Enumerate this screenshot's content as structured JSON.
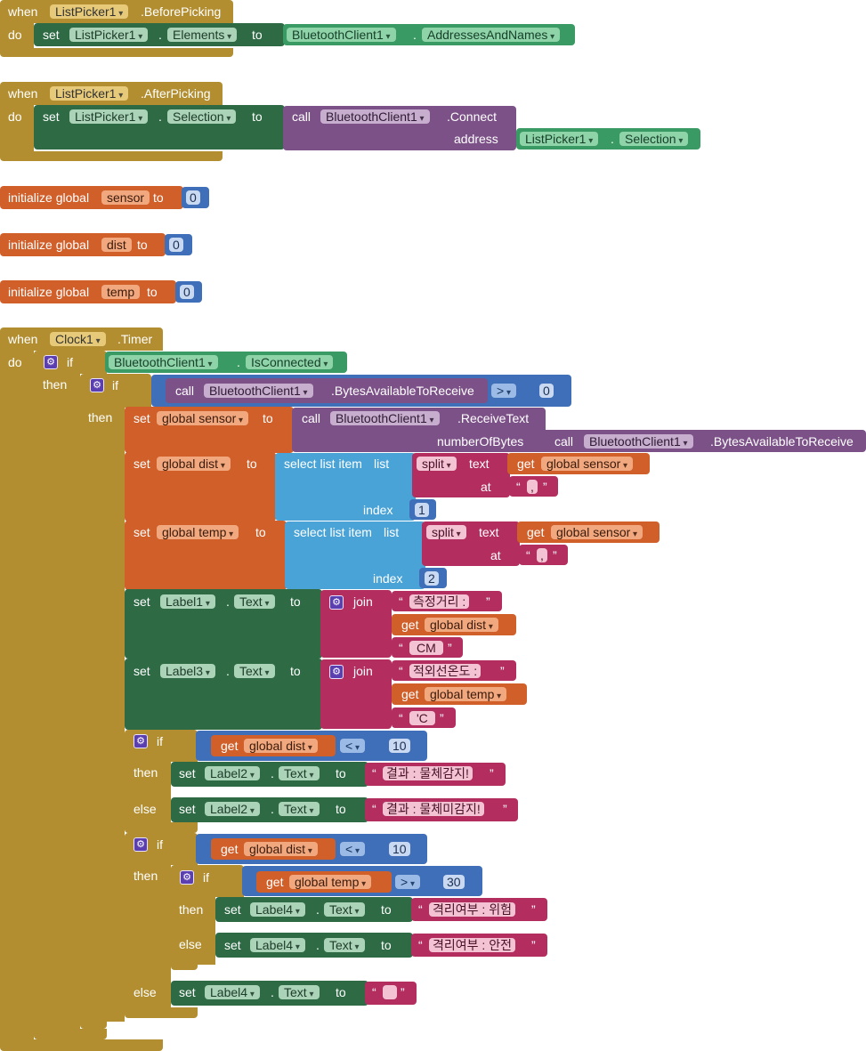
{
  "kw": {
    "when": "when",
    "do": "do",
    "set": "set",
    "to": "to",
    "call": "call",
    "init_global": "initialize global",
    "if": "if",
    "then": "then",
    "else": "else",
    "get": "get",
    "join": "join",
    "address": "address",
    "number_of_bytes": "numberOfBytes",
    "select_list_item": "select list item",
    "list": "list",
    "index": "index",
    "split": "split",
    "text": "text",
    "at": "at",
    "dot": "."
  },
  "blocks": {
    "before_picking": {
      "component": "ListPicker1",
      "event": ".BeforePicking",
      "set_component": "ListPicker1",
      "set_prop": "Elements",
      "value_component": "BluetoothClient1",
      "value_prop": "AddressesAndNames"
    },
    "after_picking": {
      "component": "ListPicker1",
      "event": ".AfterPicking",
      "set_component": "ListPicker1",
      "set_prop": "Selection",
      "call_component": "BluetoothClient1",
      "call_method": ".Connect",
      "arg_component": "ListPicker1",
      "arg_prop": "Selection"
    },
    "globals": [
      {
        "name": "sensor",
        "value": "0"
      },
      {
        "name": "dist",
        "value": "0"
      },
      {
        "name": "temp",
        "value": "0"
      }
    ],
    "timer": {
      "component": "Clock1",
      "event": ".Timer",
      "if_component": "BluetoothClient1",
      "if_prop": "IsConnected",
      "bytes_component": "BluetoothClient1",
      "bytes_method": ".BytesAvailableToReceive",
      "cmp_op": ">",
      "cmp_value": "0",
      "set_sensor_var": "global sensor",
      "receive_component": "BluetoothClient1",
      "receive_method": ".ReceiveText",
      "bytes2_component": "BluetoothClient1",
      "bytes2_method": ".BytesAvailableToReceive",
      "set_dist_var": "global dist",
      "set_temp_var": "global temp",
      "split_op": "split",
      "sensor_var": "global sensor",
      "sep1": ",",
      "sep2": ",",
      "index1": "1",
      "index2": "2",
      "label1": "Label1",
      "label1_prop": "Text",
      "join1_a": "측정거리 : ",
      "join1_var": "global dist",
      "join1_c": "CM",
      "label3": "Label3",
      "label3_prop": "Text",
      "join2_a": "적외선온도 : ",
      "join2_var": "global temp",
      "join2_c": "'C",
      "if2_var": "global dist",
      "if2_op": "<",
      "if2_value": "10",
      "label2": "Label2",
      "label2_prop": "Text",
      "label2_then": "결과 : 물체감지!",
      "label2_else": "결과 : 물체미감지!",
      "if3_var": "global dist",
      "if3_op": "<",
      "if3_value": "10",
      "if4_var": "global temp",
      "if4_op": ">",
      "if4_value": "30",
      "label4": "Label4",
      "label4_prop": "Text",
      "label4_danger": "격리여부 : 위험",
      "label4_safe": "격리여부 : 안전",
      "label4_empty": ""
    }
  },
  "colors": {
    "event": "#b28e30",
    "variable": "#d05f2a",
    "component": "#2e6b45",
    "component_getter": "#3a9a63",
    "procedure": "#7c5187",
    "control": "#3f6fb8",
    "list": "#4aa3d6",
    "text": "#b32d5e"
  }
}
